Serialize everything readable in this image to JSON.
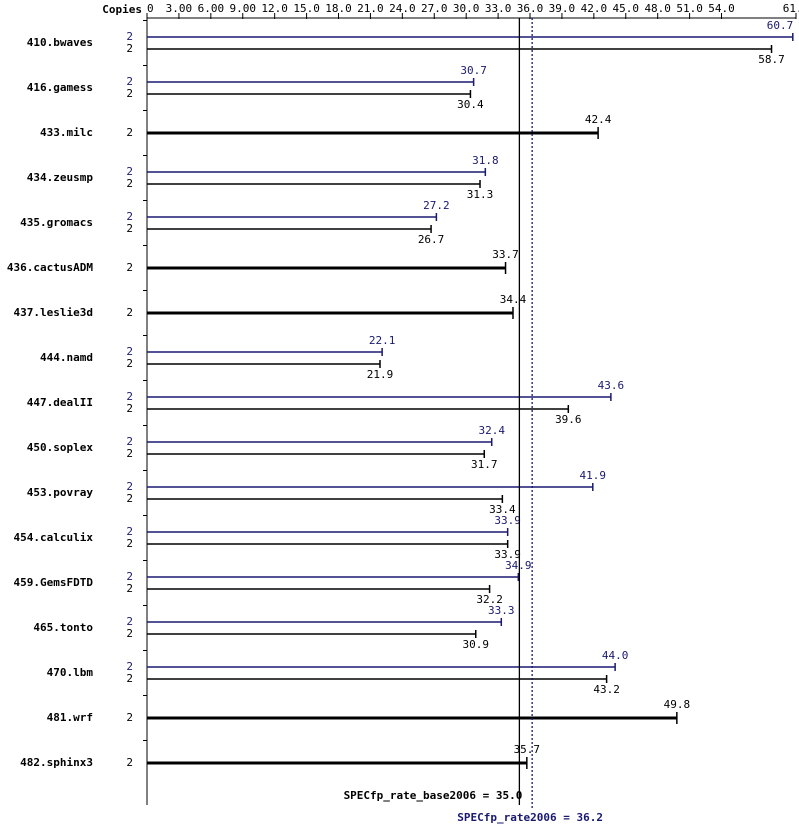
{
  "chart_data": {
    "type": "bar",
    "orientation": "horizontal",
    "copies_label": "Copies",
    "categories": [
      "410.bwaves",
      "416.gamess",
      "433.milc",
      "434.zeusmp",
      "435.gromacs",
      "436.cactusADM",
      "437.leslie3d",
      "444.namd",
      "447.dealII",
      "450.soplex",
      "453.povray",
      "454.calculix",
      "459.GemsFDTD",
      "465.tonto",
      "470.lbm",
      "481.wrf",
      "482.sphinx3"
    ],
    "series": [
      {
        "name": "peak",
        "color": "#191970",
        "copies": [
          2,
          2,
          null,
          2,
          2,
          null,
          null,
          2,
          2,
          2,
          2,
          2,
          2,
          2,
          2,
          null,
          null
        ],
        "values": [
          60.7,
          30.7,
          null,
          31.8,
          27.2,
          null,
          null,
          22.1,
          43.6,
          32.4,
          41.9,
          33.9,
          34.9,
          33.3,
          44.0,
          null,
          null
        ],
        "value_labels": [
          "60.7",
          "30.7",
          null,
          "31.8",
          "27.2",
          null,
          null,
          "22.1",
          "43.6",
          "32.4",
          "41.9",
          "33.9",
          "34.9",
          "33.3",
          "44.0",
          null,
          null
        ]
      },
      {
        "name": "base",
        "color": "#000000",
        "copies": [
          2,
          2,
          2,
          2,
          2,
          2,
          2,
          2,
          2,
          2,
          2,
          2,
          2,
          2,
          2,
          2,
          2
        ],
        "values": [
          58.7,
          30.4,
          42.4,
          31.3,
          26.7,
          33.7,
          34.4,
          21.9,
          39.6,
          31.7,
          33.4,
          33.9,
          32.2,
          30.9,
          43.2,
          49.8,
          35.7
        ],
        "value_labels": [
          "58.7",
          "30.4",
          "42.4",
          "31.3",
          "26.7",
          "33.7",
          "34.4",
          "21.9",
          "39.6",
          "31.7",
          "33.4",
          "33.9",
          "32.2",
          "30.9",
          "43.2",
          "49.8",
          "35.7"
        ]
      }
    ],
    "xlim": [
      0,
      61.0
    ],
    "xticks": [
      0,
      {
        "value": 3,
        "label": "3.00"
      },
      {
        "value": 6,
        "label": "6.00"
      },
      {
        "value": 9,
        "label": "9.00"
      },
      {
        "value": 12,
        "label": "12.0"
      },
      {
        "value": 15,
        "label": "15.0"
      },
      {
        "value": 18,
        "label": "18.0"
      },
      {
        "value": 21,
        "label": "21.0"
      },
      {
        "value": 24,
        "label": "24.0"
      },
      {
        "value": 27,
        "label": "27.0"
      },
      {
        "value": 30,
        "label": "30.0"
      },
      {
        "value": 33,
        "label": "33.0"
      },
      {
        "value": 36,
        "label": "36.0"
      },
      {
        "value": 39,
        "label": "39.0"
      },
      {
        "value": 42,
        "label": "42.0"
      },
      {
        "value": 45,
        "label": "45.0"
      },
      {
        "value": 48,
        "label": "48.0"
      },
      {
        "value": 51,
        "label": "51.0"
      },
      {
        "value": 54,
        "label": "54.0"
      },
      {
        "value": 61,
        "label": "61.0"
      }
    ],
    "reference_lines": [
      {
        "label": "SPECfp_rate_base2006 = 35.0",
        "value": 35.0,
        "color": "#000000",
        "style": "solid"
      },
      {
        "label": "SPECfp_rate2006 = 36.2",
        "value": 36.2,
        "color": "#191970",
        "style": "dotted"
      }
    ]
  }
}
